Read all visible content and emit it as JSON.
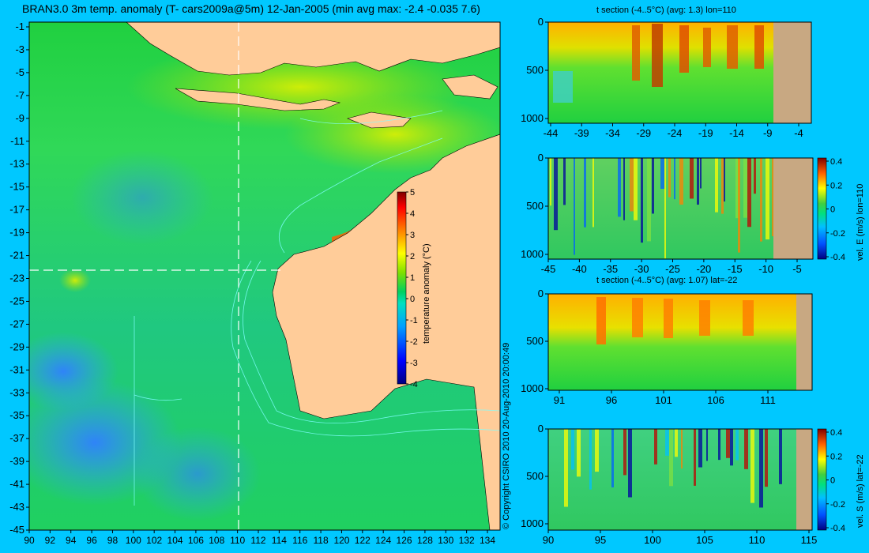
{
  "colors": {
    "background": "#00c8ff",
    "land_map": "#ffcc99",
    "land_section": "#c8a882"
  },
  "main_title": "BRAN3.0 3m temp. anomaly (T- cars2009a@5m) 12-Jan-2005 (min avg max: -2.4 -0.035 7.6)",
  "copyright": "© Copyright CSIRO 2010   20-Aug-2010 20:00:49",
  "chart_data": [
    {
      "id": "map",
      "type": "heatmap",
      "title": "BRAN3.0 3m temp. anomaly (T- cars2009a@5m) 12-Jan-2005 (min avg max: -2.4 -0.035 7.6)",
      "xlim": [
        90,
        135
      ],
      "ylim": [
        -45,
        0
      ],
      "x_ticks": [
        "90",
        "92",
        "94",
        "96",
        "98",
        "100",
        "102",
        "104",
        "106",
        "108",
        "110",
        "112",
        "114",
        "116",
        "118",
        "120",
        "122",
        "124",
        "126",
        "128",
        "130",
        "132",
        "134"
      ],
      "y_ticks": [
        "-1",
        "-3",
        "-5",
        "-7",
        "-9",
        "-11",
        "-13",
        "-15",
        "-17",
        "-19",
        "-21",
        "-23",
        "-25",
        "-27",
        "-29",
        "-31",
        "-33",
        "-35",
        "-37",
        "-39",
        "-41",
        "-43",
        "-45"
      ],
      "section_lon": 110,
      "section_lat": -22,
      "colorbar": {
        "label": "temperature anomaly (°C)",
        "range": [
          -4,
          5
        ],
        "ticks": [
          "5",
          "4",
          "3",
          "2",
          "1",
          "0",
          "-1",
          "-2",
          "-3",
          "-4"
        ]
      }
    },
    {
      "id": "t-section-lon",
      "type": "heatmap",
      "title": "t section (-4..5°C) (avg: 1.3) lon=110",
      "x_ticks": [
        "-44",
        "-39",
        "-34",
        "-29",
        "-24",
        "-19",
        "-14",
        "-9",
        "-4"
      ],
      "y_ticks": [
        "0",
        "500",
        "1000"
      ],
      "xlim": [
        -45,
        -1
      ],
      "ylim": [
        0,
        1000
      ]
    },
    {
      "id": "vel-e-section",
      "type": "heatmap",
      "title": "",
      "x_ticks": [
        "-45",
        "-40",
        "-35",
        "-30",
        "-25",
        "-20",
        "-15",
        "-10",
        "-5"
      ],
      "y_ticks": [
        "0",
        "500",
        "1000"
      ],
      "xlim": [
        -45,
        -2
      ],
      "ylim": [
        0,
        1000
      ],
      "colorbar": {
        "label": "vel. E (m/s) lon=110",
        "range": [
          -0.4,
          0.4
        ],
        "ticks": [
          "0.4",
          "0.2",
          "0",
          "-0.2",
          "-0.4"
        ]
      }
    },
    {
      "id": "t-section-lat",
      "type": "heatmap",
      "title": "t section (-4..5°C) (avg: 1.07) lat=-22",
      "x_ticks": [
        "91",
        "96",
        "101",
        "106",
        "111"
      ],
      "y_ticks": [
        "0",
        "500",
        "1000"
      ],
      "xlim": [
        90,
        114
      ],
      "ylim": [
        0,
        1000
      ]
    },
    {
      "id": "vel-s-section",
      "type": "heatmap",
      "title": "",
      "x_ticks": [
        "90",
        "95",
        "100",
        "105",
        "110",
        "115"
      ],
      "y_ticks": [
        "0",
        "500",
        "1000"
      ],
      "xlim": [
        90,
        115
      ],
      "ylim": [
        0,
        1000
      ],
      "colorbar": {
        "label": "vel. S (m/s) lat=-22",
        "range": [
          -0.4,
          0.4
        ],
        "ticks": [
          "0.4",
          "0.2",
          "0",
          "-0.2",
          "-0.4"
        ]
      }
    }
  ]
}
